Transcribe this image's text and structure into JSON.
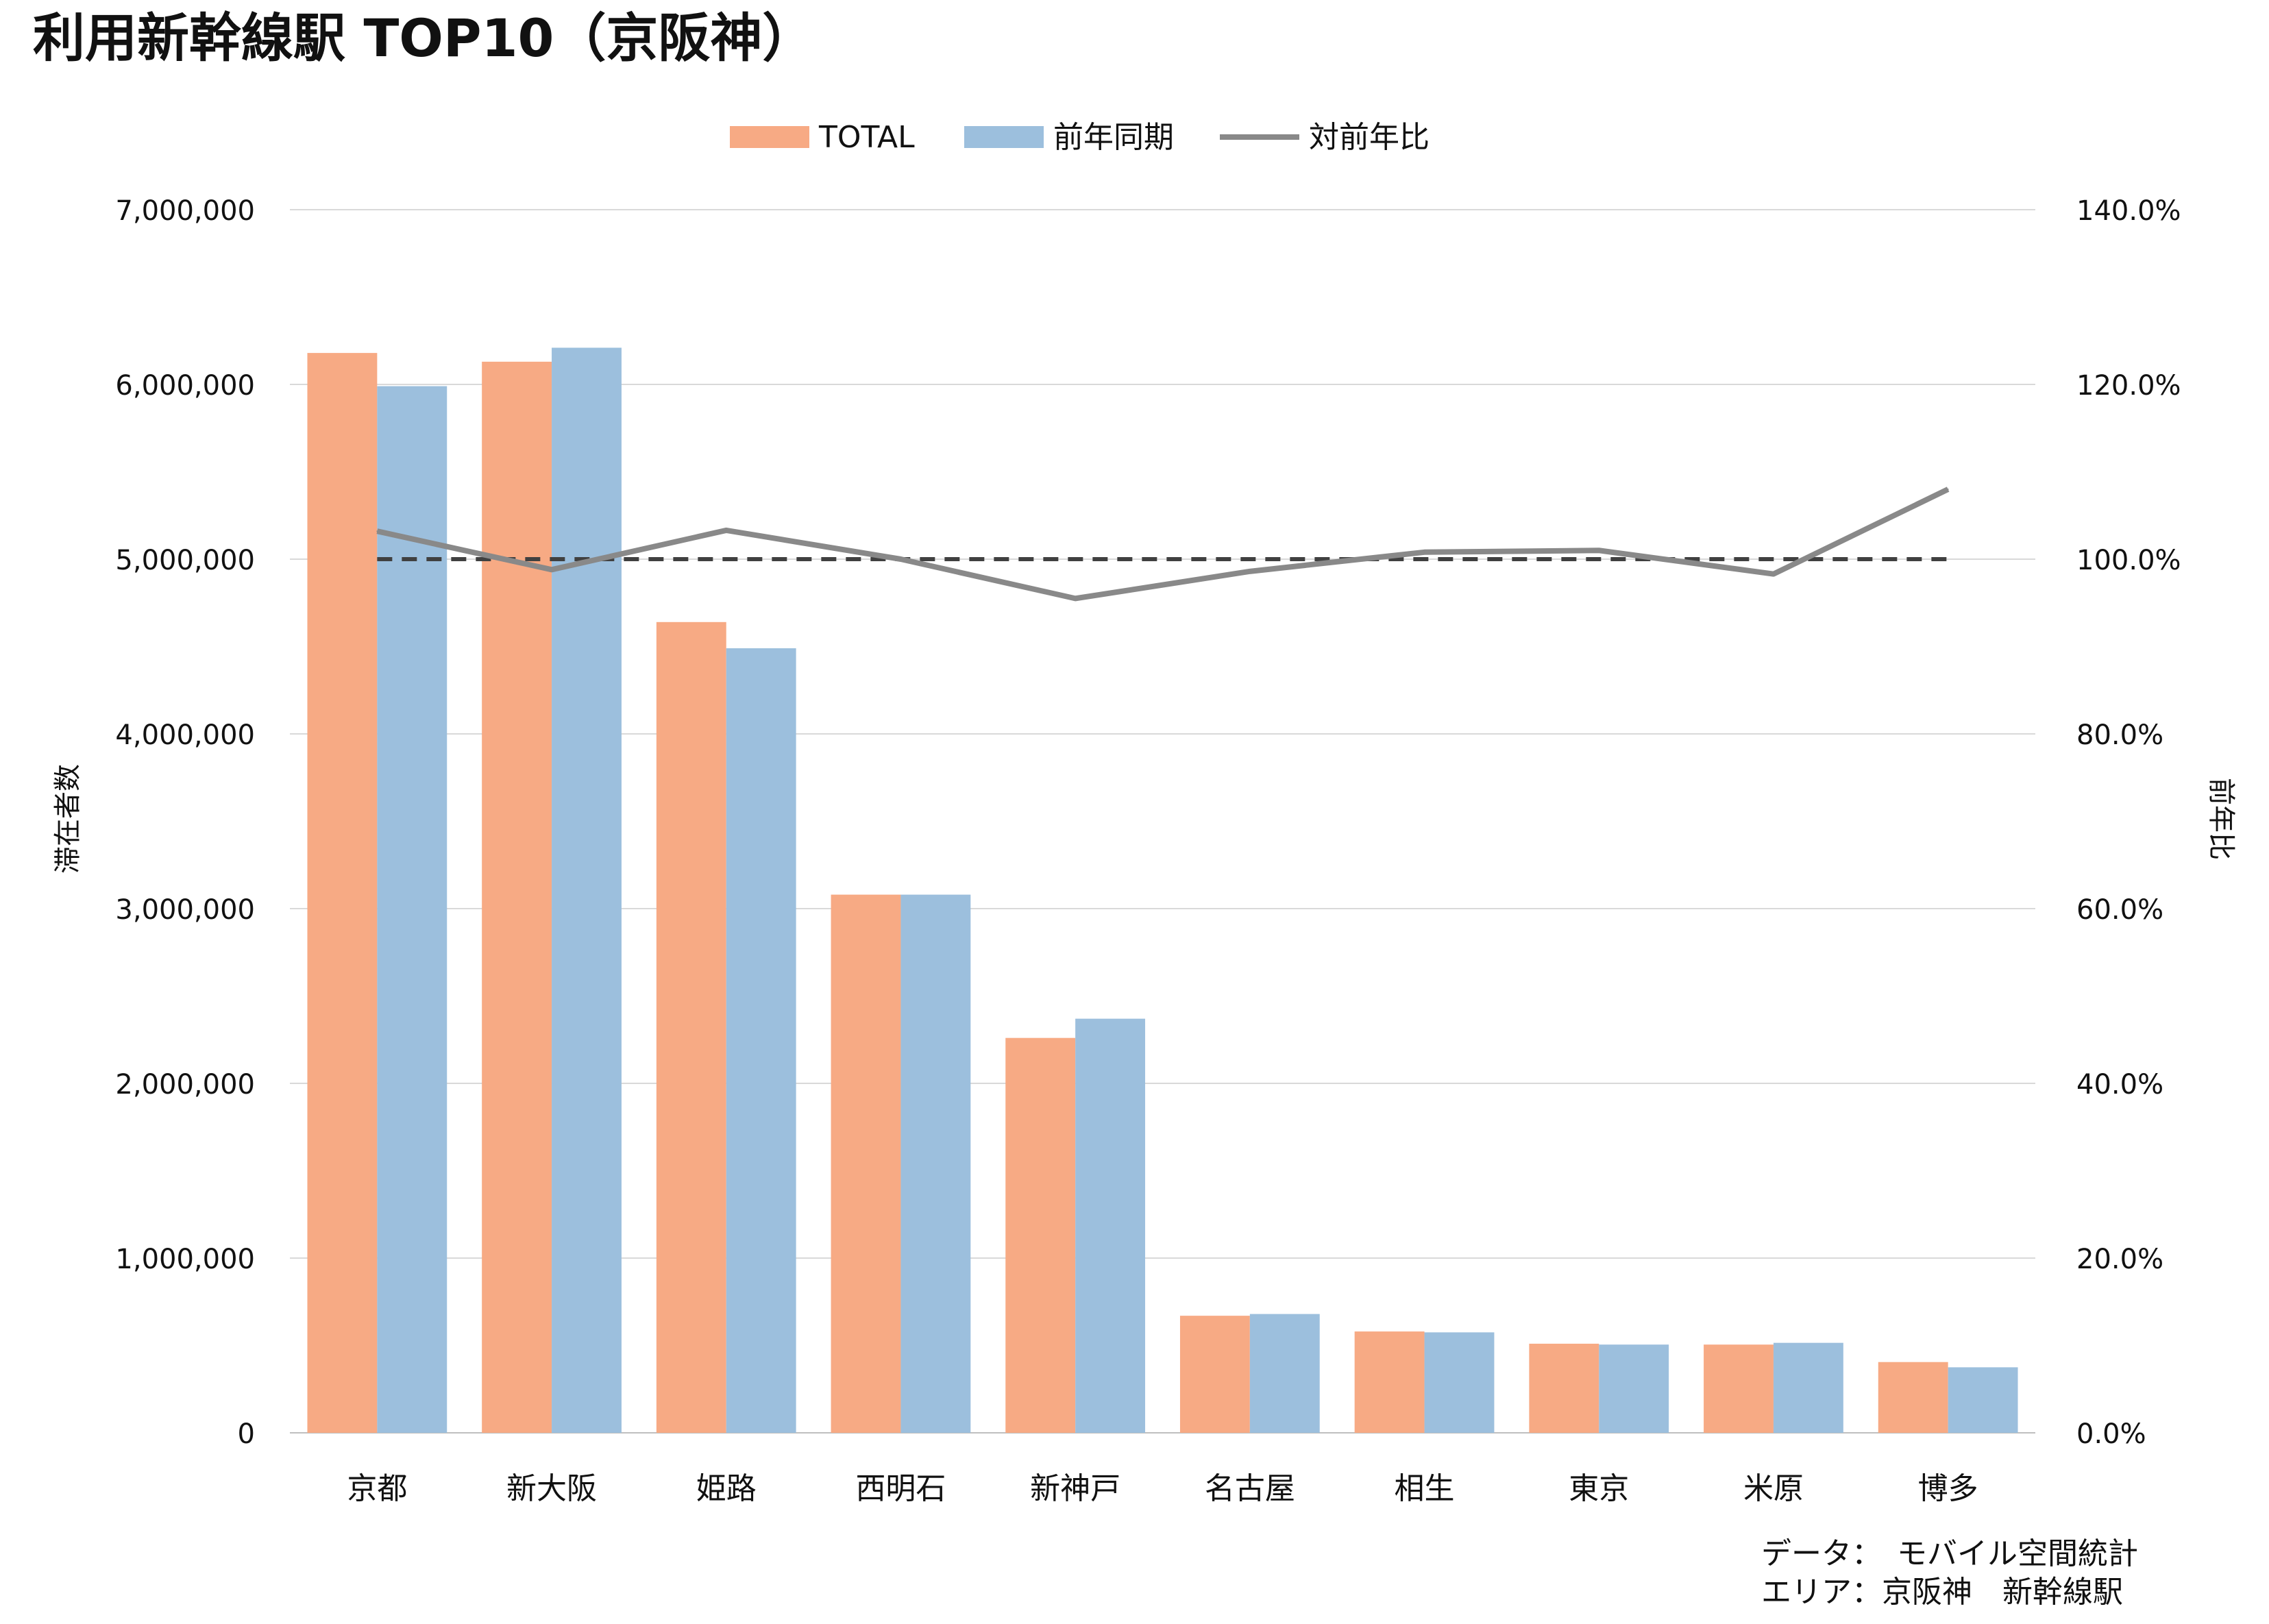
{
  "page": {
    "title": "利用新幹線駅 TOP10（京阪神）",
    "source_line1": "データ：　モバイル空間統計",
    "source_line2": "エリア：京阪神　新幹線駅"
  },
  "colors": {
    "total": "#F7AA84",
    "prev": "#9CBFDD",
    "ratio": "#898989",
    "baseline": "#404040",
    "grid": "#D9D9D9",
    "axis": "#BFBFBF"
  },
  "chart_data": {
    "type": "bar",
    "categories": [
      "京都",
      "新大阪",
      "姫路",
      "西明石",
      "新神戸",
      "名古屋",
      "相生",
      "東京",
      "米原",
      "博多"
    ],
    "series": [
      {
        "name": "TOTAL",
        "kind": "bar",
        "axis": "left",
        "values": [
          6180000,
          6130000,
          4640000,
          3080000,
          2260000,
          670000,
          580000,
          510000,
          505000,
          405000
        ]
      },
      {
        "name": "前年同期",
        "kind": "bar",
        "axis": "left",
        "values": [
          5990000,
          6210000,
          4490000,
          3080000,
          2370000,
          680000,
          575000,
          505000,
          515000,
          375000
        ]
      },
      {
        "name": "対前年比",
        "kind": "line",
        "axis": "right",
        "values": [
          103.2,
          98.8,
          103.3,
          100.0,
          95.5,
          98.6,
          100.8,
          101.0,
          98.3,
          108.0
        ]
      }
    ],
    "baseline": {
      "axis": "right",
      "value": 100.0,
      "style": "dashed"
    },
    "ylabel": "滞在者数",
    "y2label": "前年比",
    "ylim": [
      0,
      7000000
    ],
    "y2lim": [
      0,
      140
    ],
    "yticks": [
      "0",
      "1,000,000",
      "2,000,000",
      "3,000,000",
      "4,000,000",
      "5,000,000",
      "6,000,000",
      "7,000,000"
    ],
    "y2ticks": [
      "0.0%",
      "20.0%",
      "40.0%",
      "60.0%",
      "80.0%",
      "100.0%",
      "120.0%",
      "140.0%"
    ],
    "grid": true,
    "legend": "top-center"
  }
}
